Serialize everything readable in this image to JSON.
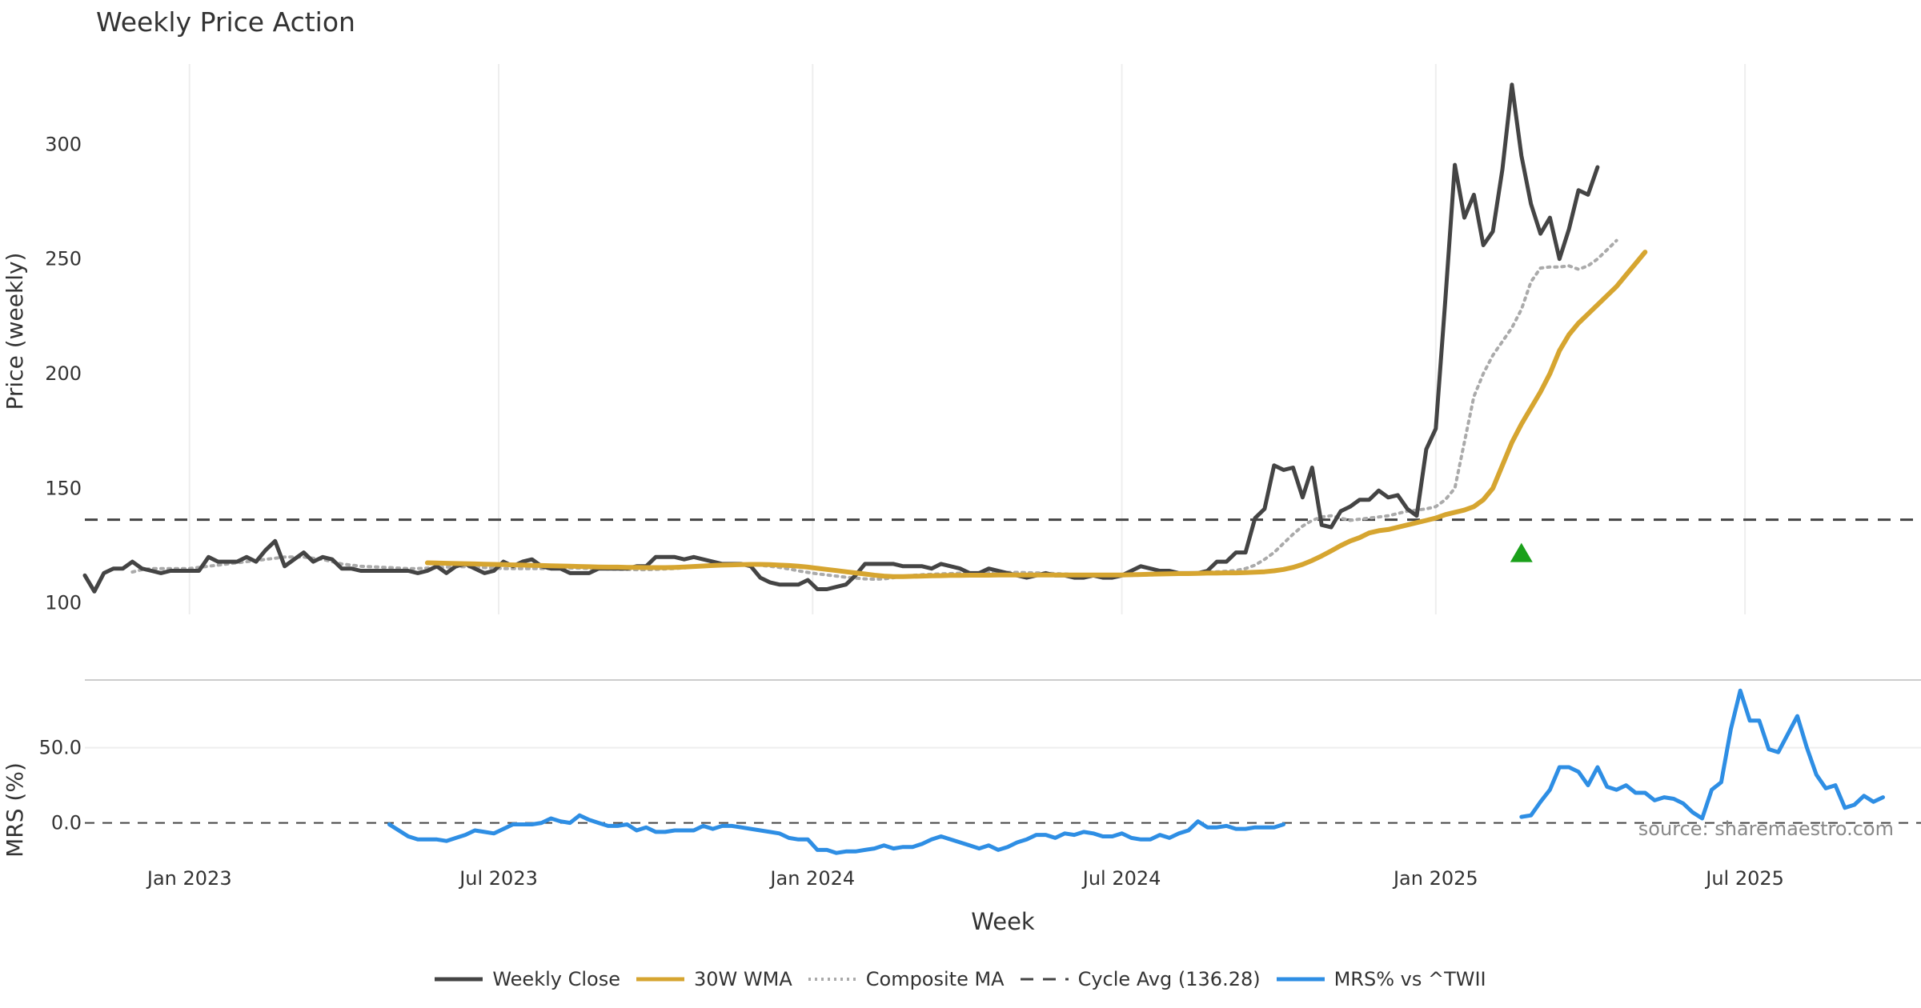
{
  "title": "Weekly Price Action",
  "source_note": "source: sharemaestro.com",
  "colors": {
    "close": "#444444",
    "wma": "#d6a530",
    "composite": "#aaaaaa",
    "cycle": "#444444",
    "mrs": "#2e8ee4",
    "signal": "#1aa01a",
    "grid": "#eeeeee"
  },
  "chart_data": [
    {
      "type": "line",
      "panel": "price",
      "ylabel": "Price (weekly)",
      "xlabel": "Week",
      "yticks": [
        100,
        150,
        200,
        250,
        300
      ],
      "ylim": [
        95,
        335
      ],
      "xlim_weeks": [
        0,
        193
      ],
      "x_ticks": [
        {
          "label": "Jan 2023",
          "week": 11
        },
        {
          "label": "Jul 2023",
          "week": 43.5
        },
        {
          "label": "Jan 2024",
          "week": 76.5
        },
        {
          "label": "Jul 2024",
          "week": 109
        },
        {
          "label": "Jan 2025",
          "week": 142
        },
        {
          "label": "Jul 2025",
          "week": 174.5
        }
      ],
      "cycle_avg": 136.28,
      "signal_marker": {
        "week": 151,
        "value": 122
      },
      "series": [
        {
          "name": "Weekly Close",
          "start_week": 0,
          "values": [
            112,
            105,
            113,
            115,
            115,
            118,
            115,
            114,
            113,
            114,
            114,
            114,
            114,
            120,
            118,
            118,
            118,
            120,
            118,
            123,
            127,
            116,
            119,
            122,
            118,
            120,
            119,
            115,
            115,
            114,
            114,
            114,
            114,
            114,
            114,
            113,
            114,
            116,
            113,
            116,
            117,
            115,
            113,
            114,
            118,
            116,
            118,
            119,
            116,
            115,
            115,
            113,
            113,
            113,
            115,
            115,
            115,
            115,
            116,
            116,
            120,
            120,
            120,
            119,
            120,
            119,
            118,
            117,
            117,
            117,
            116,
            111,
            109,
            108,
            108,
            108,
            110,
            106,
            106,
            107,
            108,
            112,
            117,
            117,
            117,
            117,
            116,
            116,
            116,
            115,
            117,
            116,
            115,
            113,
            113,
            115,
            114,
            113,
            112,
            111,
            112,
            113,
            112,
            112,
            111,
            111,
            112,
            111,
            111,
            112,
            114,
            116,
            115,
            114,
            114,
            113,
            113,
            113,
            114,
            118,
            118,
            122,
            122,
            137,
            141,
            160,
            158,
            159,
            146,
            159,
            134,
            133,
            140,
            142,
            145,
            145,
            149,
            146,
            147,
            141,
            138,
            167,
            176,
            232,
            291,
            268,
            278,
            256,
            262,
            289,
            326,
            295,
            274,
            261,
            268,
            250,
            263,
            280,
            278,
            290
          ]
        },
        {
          "name": "30W WMA",
          "start_week": 36,
          "values": [
            117.5,
            117.4,
            117.3,
            117.2,
            117.1,
            117.0,
            116.9,
            116.8,
            116.7,
            116.6,
            116.5,
            116.4,
            116.3,
            116.2,
            116.1,
            116.0,
            115.9,
            115.8,
            115.7,
            115.6,
            115.6,
            115.5,
            115.5,
            115.4,
            115.4,
            115.4,
            115.5,
            115.7,
            115.9,
            116.1,
            116.3,
            116.5,
            116.6,
            116.7,
            116.8,
            116.8,
            116.7,
            116.5,
            116.3,
            116.0,
            115.6,
            115.1,
            114.6,
            114.1,
            113.6,
            113.1,
            112.6,
            112.1,
            111.7,
            111.5,
            111.5,
            111.6,
            111.7,
            111.8,
            111.9,
            112.0,
            112.0,
            112.1,
            112.1,
            112.1,
            112.2,
            112.2,
            112.2,
            112.2,
            112.2,
            112.2,
            112.2,
            112.2,
            112.2,
            112.2,
            112.2,
            112.2,
            112.2,
            112.2,
            112.3,
            112.4,
            112.5,
            112.6,
            112.7,
            112.8,
            112.8,
            112.9,
            113.0,
            113.0,
            113.1,
            113.1,
            113.2,
            113.4,
            113.6,
            114.0,
            114.6,
            115.5,
            116.8,
            118.5,
            120.5,
            122.7,
            125.0,
            127.0,
            128.5,
            130.5,
            131.5,
            132.0,
            133.0,
            134.0,
            135.0,
            136.0,
            137.0,
            138.5,
            139.5,
            140.5,
            142.0,
            145.0,
            150.0,
            160.0,
            170.0,
            178.0,
            185.0,
            192.0,
            200.0,
            210.0,
            217.0,
            222.0,
            226.0,
            230.0,
            234.0,
            238.0,
            243.0,
            248.0,
            253.0
          ]
        },
        {
          "name": "Composite MA",
          "start_week": 5,
          "values": [
            113.5,
            114.5,
            115.0,
            115.0,
            115.0,
            115.0,
            115.0,
            115.5,
            116.0,
            116.5,
            117.0,
            117.5,
            118.0,
            118.5,
            119.0,
            119.5,
            120.0,
            120.0,
            120.0,
            119.5,
            119.0,
            118.0,
            117.0,
            116.5,
            116.0,
            115.8,
            115.6,
            115.4,
            115.2,
            115.0,
            115.0,
            115.2,
            115.4,
            115.6,
            115.8,
            115.8,
            115.6,
            115.4,
            115.2,
            115.0,
            115.0,
            115.0,
            115.0,
            115.0,
            115.0,
            115.2,
            115.2,
            115.2,
            115.0,
            115.0,
            114.8,
            114.7,
            114.6,
            114.5,
            114.5,
            114.6,
            114.8,
            115.0,
            115.3,
            115.7,
            116.1,
            116.5,
            116.8,
            117.0,
            117.0,
            116.8,
            116.4,
            116.0,
            115.5,
            114.8,
            114.0,
            113.3,
            112.7,
            112.2,
            111.7,
            111.2,
            110.8,
            110.5,
            110.3,
            110.5,
            111.0,
            111.6,
            112.0,
            112.3,
            112.5,
            112.7,
            112.8,
            113.0,
            113.1,
            113.2,
            113.3,
            113.3,
            113.3,
            113.3,
            113.2,
            113.1,
            113.0,
            112.8,
            112.6,
            112.4,
            112.2,
            112.0,
            111.9,
            111.9,
            111.9,
            112.0,
            112.1,
            112.2,
            112.4,
            112.6,
            112.8,
            113.0,
            113.2,
            113.4,
            113.6,
            113.8,
            114.2,
            115.0,
            116.5,
            119.0,
            122.0,
            126.0,
            130.0,
            133.5,
            136.0,
            137.5,
            138.0,
            137.0,
            136.0,
            136.5,
            137.0,
            137.5,
            138.0,
            139.0,
            140.0,
            140.5,
            141.0,
            142.0,
            145.0,
            150.0,
            170.0,
            190.0,
            200.0,
            208.0,
            214.0,
            220.0,
            228.0,
            240.0,
            246.0,
            246.5,
            246.5,
            247.0,
            245.5,
            247.0,
            250.0,
            254.0,
            258.0
          ]
        }
      ]
    },
    {
      "type": "line",
      "panel": "mrs",
      "ylabel": "MRS (%)",
      "yticks": [
        0.0,
        50.0
      ],
      "ytick_labels": [
        "0.0",
        "50.0"
      ],
      "ylim": [
        -30,
        95
      ],
      "series": [
        {
          "name": "MRS% vs ^TWII",
          "segments": [
            {
              "start_week": 32,
              "values": [
                -1,
                -5,
                -9,
                -11,
                -11,
                -11,
                -12,
                -10,
                -8,
                -5,
                -6,
                -7,
                -4,
                -1,
                -1,
                -1,
                0,
                3,
                1,
                0,
                5,
                2,
                0,
                -2,
                -2,
                -1,
                -5,
                -3,
                -6,
                -6,
                -5,
                -5,
                -5,
                -2,
                -4,
                -2,
                -2,
                -3,
                -4,
                -5,
                -6,
                -7,
                -10,
                -11,
                -11,
                -18,
                -18,
                -20,
                -19,
                -19,
                -18,
                -17,
                -15,
                -17,
                -16,
                -16,
                -14,
                -11,
                -9,
                -11,
                -13,
                -15,
                -17,
                -15,
                -18,
                -16,
                -13,
                -11,
                -8,
                -8,
                -10,
                -7,
                -8,
                -6,
                -7,
                -9,
                -9,
                -7,
                -10,
                -11,
                -11,
                -8,
                -10,
                -7,
                -5,
                1,
                -3,
                -3,
                -2,
                -4,
                -4,
                -3,
                -3,
                -3,
                -1
              ]
            },
            {
              "start_week": 151,
              "values": [
                4,
                5,
                14,
                22,
                37,
                37,
                34,
                25,
                37,
                24,
                22,
                25,
                20,
                20,
                15,
                17,
                16,
                13,
                7,
                3,
                22,
                27,
                62,
                88,
                68,
                68,
                49,
                47,
                59,
                71,
                50,
                32,
                23,
                25,
                10,
                12,
                18,
                14,
                17
              ]
            }
          ]
        }
      ]
    }
  ],
  "legend": [
    {
      "label": "Weekly Close",
      "style": "solid-dark"
    },
    {
      "label": "30W WMA",
      "style": "solid-gold"
    },
    {
      "label": "Composite MA",
      "style": "dotted-gray"
    },
    {
      "label": "Cycle Avg (136.28)",
      "style": "dashed-dark"
    },
    {
      "label": "MRS% vs ^TWII",
      "style": "solid-blue"
    }
  ]
}
